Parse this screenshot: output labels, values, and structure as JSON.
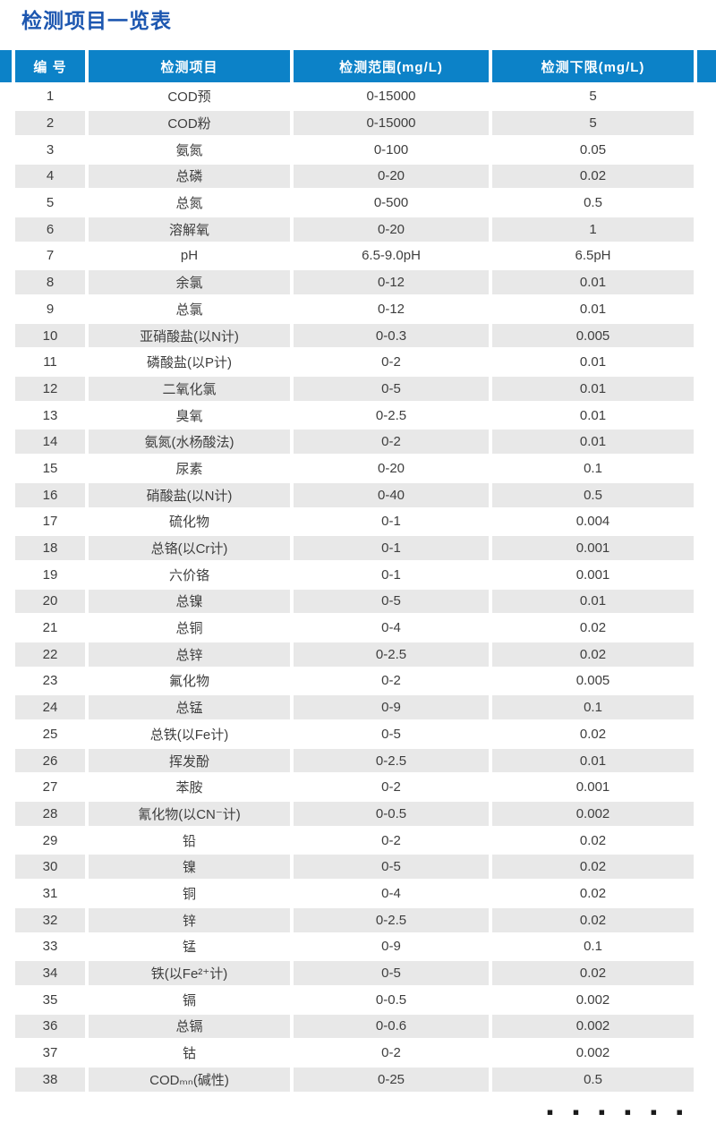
{
  "page": {
    "title": "检测项目一览表",
    "continuation_dots": "▪ ▪ ▪  ▪ ▪ ▪"
  },
  "colors": {
    "header_bg": "#0c82c8",
    "title_text": "#1d57b0",
    "alt_row_bg": "#e8e8e8",
    "body_text": "#3e3e3e"
  },
  "table": {
    "columns": [
      "编 号",
      "检测项目",
      "检测范围(mg/L)",
      "检测下限(mg/L)"
    ],
    "rows": [
      {
        "no": "1",
        "item": "COD预",
        "range": "0-15000",
        "limit": "5"
      },
      {
        "no": "2",
        "item": "COD粉",
        "range": "0-15000",
        "limit": "5"
      },
      {
        "no": "3",
        "item": "氨氮",
        "range": "0-100",
        "limit": "0.05"
      },
      {
        "no": "4",
        "item": "总磷",
        "range": "0-20",
        "limit": "0.02"
      },
      {
        "no": "5",
        "item": "总氮",
        "range": "0-500",
        "limit": "0.5"
      },
      {
        "no": "6",
        "item": "溶解氧",
        "range": "0-20",
        "limit": "1"
      },
      {
        "no": "7",
        "item": "pH",
        "range": "6.5-9.0pH",
        "limit": "6.5pH"
      },
      {
        "no": "8",
        "item": "余氯",
        "range": "0-12",
        "limit": "0.01"
      },
      {
        "no": "9",
        "item": "总氯",
        "range": "0-12",
        "limit": "0.01"
      },
      {
        "no": "10",
        "item": "亚硝酸盐(以N计)",
        "range": "0-0.3",
        "limit": "0.005"
      },
      {
        "no": "11",
        "item": "磷酸盐(以P计)",
        "range": "0-2",
        "limit": "0.01"
      },
      {
        "no": "12",
        "item": "二氧化氯",
        "range": "0-5",
        "limit": "0.01"
      },
      {
        "no": "13",
        "item": "臭氧",
        "range": "0-2.5",
        "limit": "0.01"
      },
      {
        "no": "14",
        "item": "氨氮(水杨酸法)",
        "range": "0-2",
        "limit": "0.01"
      },
      {
        "no": "15",
        "item": "尿素",
        "range": "0-20",
        "limit": "0.1"
      },
      {
        "no": "16",
        "item": "硝酸盐(以N计)",
        "range": "0-40",
        "limit": "0.5"
      },
      {
        "no": "17",
        "item": "硫化物",
        "range": "0-1",
        "limit": "0.004"
      },
      {
        "no": "18",
        "item": "总铬(以Cr计)",
        "range": "0-1",
        "limit": "0.001"
      },
      {
        "no": "19",
        "item": "六价铬",
        "range": "0-1",
        "limit": "0.001"
      },
      {
        "no": "20",
        "item": "总镍",
        "range": "0-5",
        "limit": "0.01"
      },
      {
        "no": "21",
        "item": "总铜",
        "range": "0-4",
        "limit": "0.02"
      },
      {
        "no": "22",
        "item": "总锌",
        "range": "0-2.5",
        "limit": "0.02"
      },
      {
        "no": "23",
        "item": "氟化物",
        "range": "0-2",
        "limit": "0.005"
      },
      {
        "no": "24",
        "item": "总锰",
        "range": "0-9",
        "limit": "0.1"
      },
      {
        "no": "25",
        "item": "总铁(以Fe计)",
        "range": "0-5",
        "limit": "0.02"
      },
      {
        "no": "26",
        "item": "挥发酚",
        "range": "0-2.5",
        "limit": "0.01"
      },
      {
        "no": "27",
        "item": "苯胺",
        "range": "0-2",
        "limit": "0.001"
      },
      {
        "no": "28",
        "item": "氰化物(以CN⁻计)",
        "range": "0-0.5",
        "limit": "0.002"
      },
      {
        "no": "29",
        "item": "铅",
        "range": "0-2",
        "limit": "0.02"
      },
      {
        "no": "30",
        "item": "镍",
        "range": "0-5",
        "limit": "0.02"
      },
      {
        "no": "31",
        "item": "铜",
        "range": "0-4",
        "limit": "0.02"
      },
      {
        "no": "32",
        "item": "锌",
        "range": "0-2.5",
        "limit": "0.02"
      },
      {
        "no": "33",
        "item": "锰",
        "range": "0-9",
        "limit": "0.1"
      },
      {
        "no": "34",
        "item": "铁(以Fe²⁺计)",
        "range": "0-5",
        "limit": "0.02"
      },
      {
        "no": "35",
        "item": "镉",
        "range": "0-0.5",
        "limit": "0.002"
      },
      {
        "no": "36",
        "item": "总镉",
        "range": "0-0.6",
        "limit": "0.002"
      },
      {
        "no": "37",
        "item": "钴",
        "range": "0-2",
        "limit": "0.002"
      },
      {
        "no": "38",
        "item": "CODₘₙ(碱性)",
        "range": "0-25",
        "limit": "0.5"
      }
    ]
  }
}
